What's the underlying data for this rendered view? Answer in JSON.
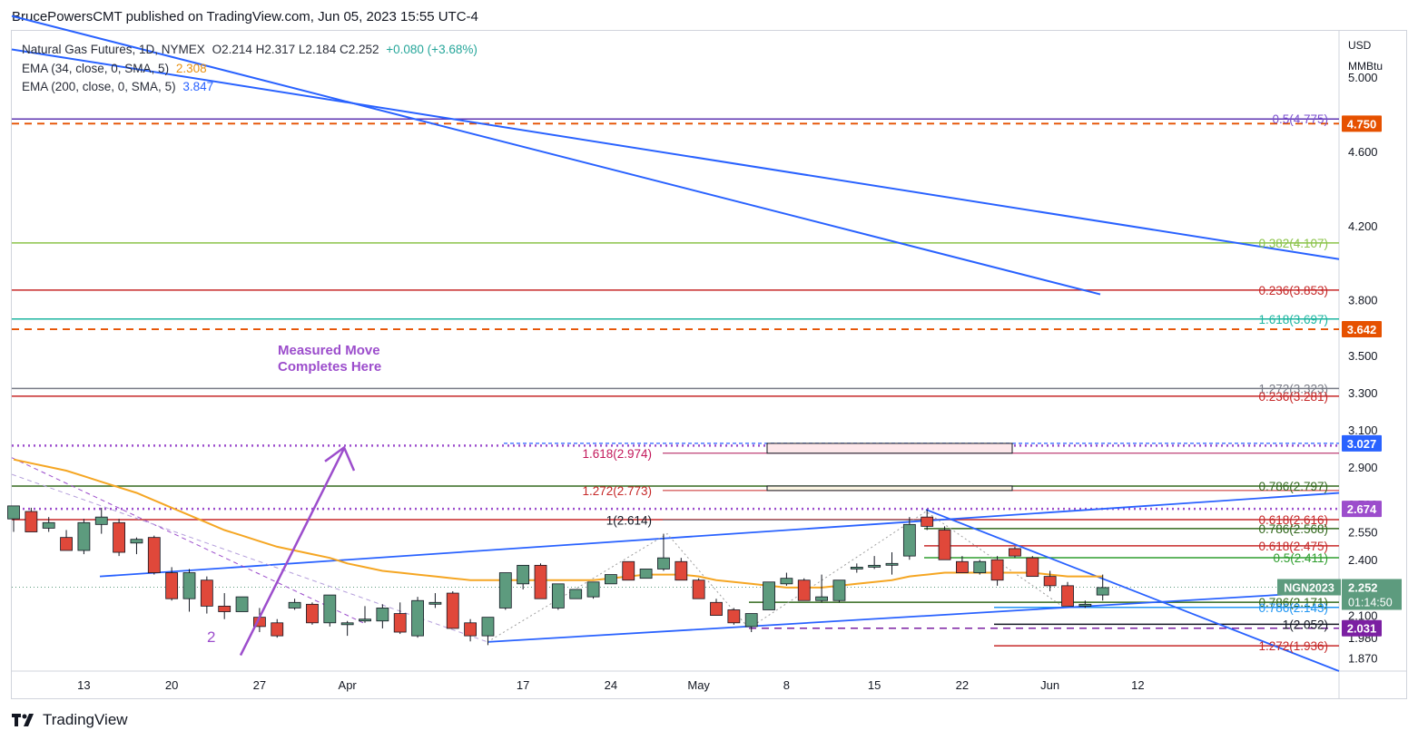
{
  "header": {
    "published": "BrucePowersCMT published on TradingView.com, Jun 05, 2023 15:55 UTC-4"
  },
  "legend": {
    "symbol": "Natural Gas Futures, 1D, NYMEX",
    "ohlc": "O2.214  H2.317  L2.184  C2.252",
    "change": "+0.080 (+3.68%)",
    "ema34_label": "EMA (34, close, 0, SMA, 5)",
    "ema34_value": "2.308",
    "ema200_label": "EMA (200, close, 0, SMA, 5)",
    "ema200_value": "3.847"
  },
  "footer": {
    "brand": "TradingView"
  },
  "colors": {
    "up": "#5d9b7e",
    "down": "#e0483a",
    "ema34": "#f5a623",
    "trend": "#2962ff",
    "purple": "#9c4dcc"
  },
  "chart_data": {
    "type": "candlestick",
    "axis_unit_top": "USD",
    "axis_unit_bottom": "MMBtu",
    "ylim": [
      1.8,
      5.25
    ],
    "y_ticks": [
      "5.000",
      "4.600",
      "4.200",
      "3.800",
      "3.500",
      "3.300",
      "3.100",
      "2.900",
      "2.700",
      "2.550",
      "2.400",
      "2.250",
      "2.100",
      "1.980",
      "1.870"
    ],
    "x_ticks": [
      "13",
      "20",
      "27",
      "Apr",
      "17",
      "24",
      "May",
      "8",
      "15",
      "22",
      "Jun",
      "12"
    ],
    "x_tick_index": [
      4,
      9,
      14,
      19,
      29,
      34,
      39,
      44,
      49,
      54,
      59,
      64
    ],
    "candles": [
      [
        2.62,
        2.69,
        2.55,
        2.69
      ],
      [
        2.66,
        2.68,
        2.55,
        2.55
      ],
      [
        2.57,
        2.63,
        2.55,
        2.6
      ],
      [
        2.52,
        2.56,
        2.46,
        2.45
      ],
      [
        2.45,
        2.62,
        2.43,
        2.6
      ],
      [
        2.59,
        2.68,
        2.54,
        2.63
      ],
      [
        2.6,
        2.62,
        2.42,
        2.44
      ],
      [
        2.49,
        2.52,
        2.43,
        2.51
      ],
      [
        2.52,
        2.53,
        2.32,
        2.33
      ],
      [
        2.33,
        2.36,
        2.18,
        2.19
      ],
      [
        2.19,
        2.35,
        2.12,
        2.33
      ],
      [
        2.29,
        2.31,
        2.11,
        2.15
      ],
      [
        2.15,
        2.22,
        2.08,
        2.12
      ],
      [
        2.12,
        2.2,
        2.12,
        2.2
      ],
      [
        2.09,
        2.14,
        2.01,
        2.04
      ],
      [
        2.06,
        2.08,
        1.98,
        1.99
      ],
      [
        2.14,
        2.19,
        2.13,
        2.17
      ],
      [
        2.16,
        2.17,
        2.05,
        2.06
      ],
      [
        2.06,
        2.21,
        2.04,
        2.21
      ],
      [
        2.05,
        2.07,
        1.99,
        2.06
      ],
      [
        2.07,
        2.15,
        2.06,
        2.08
      ],
      [
        2.07,
        2.16,
        2.03,
        2.14
      ],
      [
        2.11,
        2.17,
        2.0,
        2.01
      ],
      [
        1.99,
        2.2,
        1.98,
        2.18
      ],
      [
        2.17,
        2.22,
        2.14,
        2.17
      ],
      [
        2.22,
        2.23,
        2.04,
        2.03
      ],
      [
        2.06,
        2.08,
        1.96,
        1.99
      ],
      [
        1.99,
        2.09,
        1.94,
        2.09
      ],
      [
        2.14,
        2.33,
        2.13,
        2.33
      ],
      [
        2.27,
        2.36,
        2.24,
        2.37
      ],
      [
        2.37,
        2.38,
        2.19,
        2.19
      ],
      [
        2.14,
        2.27,
        2.13,
        2.27
      ],
      [
        2.19,
        2.24,
        2.19,
        2.24
      ],
      [
        2.2,
        2.28,
        2.19,
        2.28
      ],
      [
        2.27,
        2.31,
        2.27,
        2.32
      ],
      [
        2.39,
        2.39,
        2.29,
        2.29
      ],
      [
        2.3,
        2.35,
        2.3,
        2.35
      ],
      [
        2.35,
        2.54,
        2.34,
        2.41
      ],
      [
        2.39,
        2.41,
        2.29,
        2.29
      ],
      [
        2.29,
        2.3,
        2.19,
        2.19
      ],
      [
        2.17,
        2.19,
        2.1,
        2.1
      ],
      [
        2.13,
        2.14,
        2.05,
        2.06
      ],
      [
        2.04,
        2.11,
        2.01,
        2.11
      ],
      [
        2.13,
        2.28,
        2.13,
        2.28
      ],
      [
        2.27,
        2.33,
        2.26,
        2.3
      ],
      [
        2.29,
        2.3,
        2.18,
        2.18
      ],
      [
        2.18,
        2.32,
        2.17,
        2.2
      ],
      [
        2.18,
        2.28,
        2.17,
        2.29
      ],
      [
        2.35,
        2.38,
        2.33,
        2.36
      ],
      [
        2.36,
        2.42,
        2.35,
        2.37
      ],
      [
        2.38,
        2.44,
        2.32,
        2.38
      ],
      [
        2.42,
        2.63,
        2.4,
        2.59
      ],
      [
        2.63,
        2.67,
        2.56,
        2.58
      ],
      [
        2.56,
        2.58,
        2.4,
        2.4
      ],
      [
        2.39,
        2.42,
        2.33,
        2.33
      ],
      [
        2.33,
        2.4,
        2.32,
        2.39
      ],
      [
        2.4,
        2.42,
        2.26,
        2.29
      ],
      [
        2.46,
        2.47,
        2.41,
        2.42
      ],
      [
        2.41,
        2.42,
        2.31,
        2.31
      ],
      [
        2.31,
        2.34,
        2.23,
        2.26
      ],
      [
        2.26,
        2.28,
        2.15,
        2.15
      ],
      [
        2.15,
        2.18,
        2.14,
        2.16
      ],
      [
        2.21,
        2.32,
        2.18,
        2.25
      ]
    ],
    "ema34": [
      2.94,
      2.92,
      2.9,
      2.88,
      2.85,
      2.82,
      2.79,
      2.76,
      2.72,
      2.68,
      2.64,
      2.6,
      2.56,
      2.53,
      2.5,
      2.47,
      2.45,
      2.43,
      2.41,
      2.38,
      2.36,
      2.34,
      2.33,
      2.32,
      2.31,
      2.3,
      2.29,
      2.29,
      2.29,
      2.29,
      2.29,
      2.29,
      2.29,
      2.29,
      2.3,
      2.31,
      2.32,
      2.32,
      2.32,
      2.31,
      2.29,
      2.28,
      2.27,
      2.26,
      2.25,
      2.25,
      2.25,
      2.26,
      2.27,
      2.28,
      2.29,
      2.31,
      2.32,
      2.33,
      2.33,
      2.33,
      2.33,
      2.33,
      2.33,
      2.32,
      2.31,
      2.31,
      2.31
    ],
    "price_badges": [
      {
        "label": "4.750",
        "value": 4.75,
        "color": "#e65100"
      },
      {
        "label": "3.642",
        "value": 3.642,
        "color": "#e65100"
      },
      {
        "label": "3.027",
        "value": 3.027,
        "color": "#2962ff"
      },
      {
        "label": "2.674",
        "value": 2.674,
        "color": "#9c4dcc"
      },
      {
        "label": "2.031",
        "value": 2.031,
        "color": "#7b1fa2"
      }
    ],
    "current_price": {
      "symbol": "NGN2023",
      "price": "2.252",
      "countdown": "01:14:50",
      "value": 2.252
    },
    "fib_labels": [
      {
        "text": "0.5(4.775)",
        "value": 4.775,
        "color": "#7b4fcf"
      },
      {
        "text": "0.382(4.107)",
        "value": 4.107,
        "color": "#8bc34a"
      },
      {
        "text": "0.236(3.853)",
        "value": 3.853,
        "color": "#c62828"
      },
      {
        "text": "1.618(3.697)",
        "value": 3.697,
        "color": "#1cb5a0"
      },
      {
        "text": "1.272(3.323)",
        "value": 3.323,
        "color": "#787b86"
      },
      {
        "text": "0.236(3.281)",
        "value": 3.281,
        "color": "#c62828"
      },
      {
        "text": "0.786(2.797)",
        "value": 2.797,
        "color": "#33691e"
      },
      {
        "text": "0.618(2.616)",
        "value": 2.616,
        "color": "#c62828"
      },
      {
        "text": "0.786(2.568)",
        "value": 2.568,
        "color": "#33691e"
      },
      {
        "text": "0.618(2.475)",
        "value": 2.475,
        "color": "#c62828"
      },
      {
        "text": "0.5(2.411)",
        "value": 2.411,
        "color": "#2e9e2e"
      },
      {
        "text": "0.786(2.171)",
        "value": 2.171,
        "color": "#33691e"
      },
      {
        "text": "0.786(2.143)",
        "value": 2.143,
        "color": "#2196f3"
      },
      {
        "text": "1(2.052)",
        "value": 2.052,
        "color": "#131722"
      },
      {
        "text": "1.272(1.936)",
        "value": 1.936,
        "color": "#c62828"
      }
    ],
    "mid_labels": [
      {
        "text": "1.618(2.974)",
        "value": 2.974,
        "color": "#c2185b"
      },
      {
        "text": "1.272(2.773)",
        "value": 2.773,
        "color": "#c62828"
      },
      {
        "text": "1(2.614)",
        "value": 2.614,
        "color": "#131722"
      }
    ],
    "annotations": [
      {
        "text": "Measured Move",
        "color": "#9c4dcc"
      },
      {
        "text": "Completes Here",
        "color": "#9c4dcc"
      },
      {
        "text": "2",
        "color": "#9c4dcc"
      }
    ]
  }
}
